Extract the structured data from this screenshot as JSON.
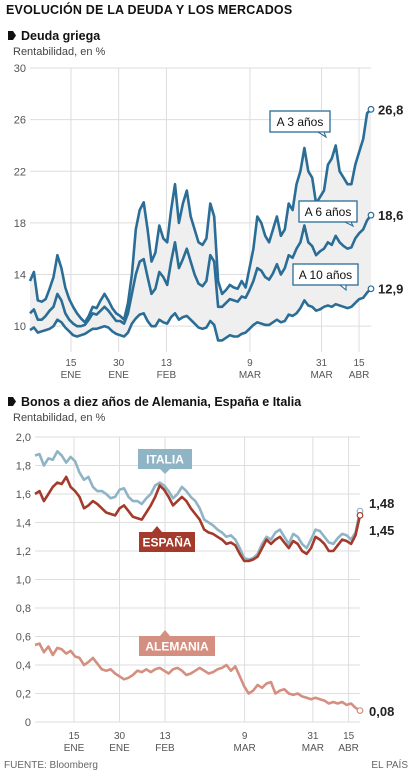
{
  "header": {
    "title": "EVOLUCIÓN DE LA DEUDA Y LOS MERCADOS"
  },
  "footer": {
    "source": "FUENTE: Bloomberg",
    "credit": "EL PAÍS"
  },
  "colors": {
    "greek_series": "#2a6d96",
    "italia": "#8fb4c6",
    "espana": "#a33a2c",
    "alemania": "#d48f80",
    "greek_area": "#efefef",
    "grid": "#dddddd"
  },
  "chart_data": [
    {
      "type": "line",
      "title": "Deuda griega",
      "ylabel": "Rentabilidad, en %",
      "ylim": [
        8,
        30
      ],
      "yticks": [
        10,
        14,
        18,
        22,
        26,
        30
      ],
      "ytick_labels": [
        "10",
        "14",
        "18",
        "22",
        "26",
        "30"
      ],
      "xticks": [
        {
          "top": "15",
          "bottom": "ENE"
        },
        {
          "top": "30",
          "bottom": "ENE"
        },
        {
          "top": "13",
          "bottom": "FEB"
        },
        {
          "top": "9",
          "bottom": "MAR"
        },
        {
          "top": "31",
          "bottom": "MAR"
        },
        {
          "top": "15",
          "bottom": "ABR"
        }
      ],
      "shaded_area_between": [
        "A 3 años",
        "A 10 años"
      ],
      "series": [
        {
          "name": "A 3 años",
          "end_label": "26,8",
          "values": [
            13.5,
            14.2,
            12.0,
            11.9,
            12.1,
            12.9,
            13.8,
            15.5,
            14.5,
            13.0,
            12.1,
            11.5,
            11.0,
            10.6,
            10.3,
            10.8,
            11.5,
            11.4,
            12.0,
            12.5,
            12.0,
            11.4,
            11.0,
            10.8,
            10.5,
            11.8,
            14.0,
            17.5,
            19.0,
            19.6,
            17.5,
            15.0,
            15.7,
            17.8,
            16.8,
            16.5,
            19.0,
            21.0,
            18.0,
            19.5,
            20.5,
            18.5,
            17.5,
            16.5,
            16.3,
            16.8,
            19.5,
            18.5,
            13.5,
            12.5,
            12.8,
            13.2,
            13.0,
            12.9,
            13.5,
            13.0,
            14.5,
            16.0,
            18.5,
            18.0,
            17.0,
            16.5,
            17.5,
            18.5,
            17.0,
            17.5,
            19.5,
            19.0,
            21.0,
            22.0,
            23.8,
            22.0,
            21.5,
            19.5,
            20.0,
            20.5,
            22.5,
            23.0,
            24.0,
            22.0,
            21.5,
            21.0,
            21.0,
            22.5,
            23.5,
            24.5,
            26.5,
            26.8
          ]
        },
        {
          "name": "A 6 años",
          "end_label": "18,6",
          "values": [
            11.0,
            11.3,
            10.5,
            10.5,
            10.8,
            11.2,
            11.5,
            12.5,
            12.0,
            11.0,
            10.5,
            10.2,
            10.0,
            10.0,
            10.1,
            10.5,
            11.0,
            10.9,
            11.2,
            11.5,
            11.2,
            10.8,
            10.4,
            10.4,
            10.2,
            11.0,
            12.5,
            14.0,
            15.0,
            15.2,
            13.8,
            12.5,
            12.9,
            14.2,
            13.8,
            13.2,
            15.0,
            16.5,
            14.5,
            15.2,
            16.0,
            15.0,
            14.0,
            13.3,
            13.1,
            13.5,
            15.5,
            15.0,
            11.5,
            11.5,
            11.8,
            12.1,
            12.0,
            11.9,
            12.3,
            12.2,
            12.8,
            13.5,
            14.5,
            14.3,
            13.8,
            13.6,
            14.1,
            14.8,
            14.0,
            14.5,
            15.5,
            15.3,
            16.0,
            16.5,
            17.8,
            16.5,
            16.2,
            15.5,
            15.8,
            16.0,
            16.5,
            16.3,
            17.0,
            16.5,
            16.2,
            16.0,
            16.1,
            16.8,
            17.2,
            17.5,
            18.2,
            18.6
          ]
        },
        {
          "name": "A 10 años",
          "end_label": "12,9",
          "values": [
            9.7,
            9.9,
            9.5,
            9.6,
            9.7,
            9.8,
            10.0,
            10.5,
            10.3,
            9.9,
            9.6,
            9.3,
            9.2,
            9.3,
            9.4,
            9.6,
            9.8,
            9.8,
            9.9,
            10.0,
            9.9,
            9.6,
            9.4,
            9.3,
            9.2,
            9.5,
            10.2,
            10.6,
            10.9,
            11.0,
            10.4,
            10.0,
            10.0,
            10.5,
            10.3,
            10.2,
            10.7,
            11.0,
            10.5,
            10.7,
            10.8,
            10.5,
            10.2,
            9.9,
            9.8,
            9.9,
            10.4,
            10.1,
            8.9,
            8.9,
            9.1,
            9.3,
            9.2,
            9.2,
            9.4,
            9.5,
            9.8,
            10.1,
            10.3,
            10.2,
            10.1,
            10.1,
            10.3,
            10.5,
            10.3,
            10.4,
            10.9,
            10.8,
            11.0,
            11.4,
            12.0,
            11.6,
            11.5,
            11.2,
            11.3,
            11.5,
            11.6,
            11.5,
            11.7,
            11.6,
            11.5,
            11.4,
            11.5,
            11.8,
            12.1,
            12.2,
            12.6,
            12.9
          ]
        }
      ]
    },
    {
      "type": "line",
      "title": "Bonos a diez años de Alemania, España e Italia",
      "ylabel": "Rentabilidad, en %",
      "ylim": [
        0,
        2.0
      ],
      "yticks": [
        0,
        0.2,
        0.4,
        0.6,
        0.8,
        1.0,
        1.2,
        1.4,
        1.6,
        1.8,
        2.0
      ],
      "ytick_labels": [
        "0",
        "0,2",
        "0,4",
        "0,6",
        "0,8",
        "1,0",
        "1,2",
        "1,4",
        "1,6",
        "1,8",
        "2,0"
      ],
      "xticks": [
        {
          "top": "15",
          "bottom": "ENE"
        },
        {
          "top": "30",
          "bottom": "ENE"
        },
        {
          "top": "13",
          "bottom": "FEB"
        },
        {
          "top": "9",
          "bottom": "MAR"
        },
        {
          "top": "31",
          "bottom": "MAR"
        },
        {
          "top": "15",
          "bottom": "ABR"
        }
      ],
      "series": [
        {
          "name": "ITALIA",
          "end_label": "1,48",
          "values": [
            1.87,
            1.88,
            1.8,
            1.85,
            1.84,
            1.9,
            1.87,
            1.82,
            1.86,
            1.83,
            1.75,
            1.7,
            1.72,
            1.65,
            1.62,
            1.62,
            1.6,
            1.57,
            1.58,
            1.63,
            1.64,
            1.58,
            1.55,
            1.55,
            1.53,
            1.57,
            1.6,
            1.66,
            1.68,
            1.66,
            1.62,
            1.57,
            1.6,
            1.65,
            1.62,
            1.58,
            1.55,
            1.5,
            1.42,
            1.4,
            1.38,
            1.35,
            1.33,
            1.3,
            1.31,
            1.28,
            1.22,
            1.15,
            1.14,
            1.15,
            1.18,
            1.25,
            1.3,
            1.28,
            1.33,
            1.35,
            1.3,
            1.25,
            1.32,
            1.3,
            1.25,
            1.22,
            1.28,
            1.35,
            1.34,
            1.3,
            1.26,
            1.25,
            1.29,
            1.32,
            1.31,
            1.28,
            1.33,
            1.48
          ]
        },
        {
          "name": "ESPAÑA",
          "end_label": "1,45",
          "values": [
            1.6,
            1.62,
            1.55,
            1.6,
            1.65,
            1.68,
            1.67,
            1.72,
            1.65,
            1.62,
            1.58,
            1.5,
            1.52,
            1.55,
            1.53,
            1.5,
            1.47,
            1.46,
            1.45,
            1.5,
            1.52,
            1.48,
            1.44,
            1.43,
            1.42,
            1.47,
            1.52,
            1.58,
            1.66,
            1.63,
            1.58,
            1.52,
            1.55,
            1.58,
            1.55,
            1.5,
            1.46,
            1.42,
            1.35,
            1.33,
            1.32,
            1.3,
            1.28,
            1.25,
            1.26,
            1.24,
            1.18,
            1.13,
            1.13,
            1.14,
            1.16,
            1.22,
            1.28,
            1.25,
            1.28,
            1.3,
            1.26,
            1.22,
            1.27,
            1.25,
            1.2,
            1.18,
            1.22,
            1.3,
            1.28,
            1.25,
            1.2,
            1.2,
            1.24,
            1.28,
            1.27,
            1.25,
            1.31,
            1.45
          ]
        },
        {
          "name": "ALEMANIA",
          "end_label": "0,08",
          "values": [
            0.54,
            0.55,
            0.49,
            0.53,
            0.47,
            0.52,
            0.51,
            0.48,
            0.5,
            0.46,
            0.45,
            0.4,
            0.42,
            0.45,
            0.41,
            0.37,
            0.36,
            0.37,
            0.34,
            0.32,
            0.3,
            0.31,
            0.33,
            0.36,
            0.35,
            0.37,
            0.35,
            0.37,
            0.38,
            0.36,
            0.34,
            0.37,
            0.38,
            0.36,
            0.33,
            0.34,
            0.36,
            0.38,
            0.36,
            0.34,
            0.35,
            0.37,
            0.38,
            0.4,
            0.36,
            0.39,
            0.32,
            0.25,
            0.2,
            0.22,
            0.26,
            0.24,
            0.27,
            0.28,
            0.2,
            0.22,
            0.23,
            0.2,
            0.19,
            0.2,
            0.18,
            0.17,
            0.16,
            0.17,
            0.16,
            0.15,
            0.13,
            0.14,
            0.13,
            0.14,
            0.12,
            0.13,
            0.1,
            0.08
          ]
        }
      ]
    }
  ]
}
